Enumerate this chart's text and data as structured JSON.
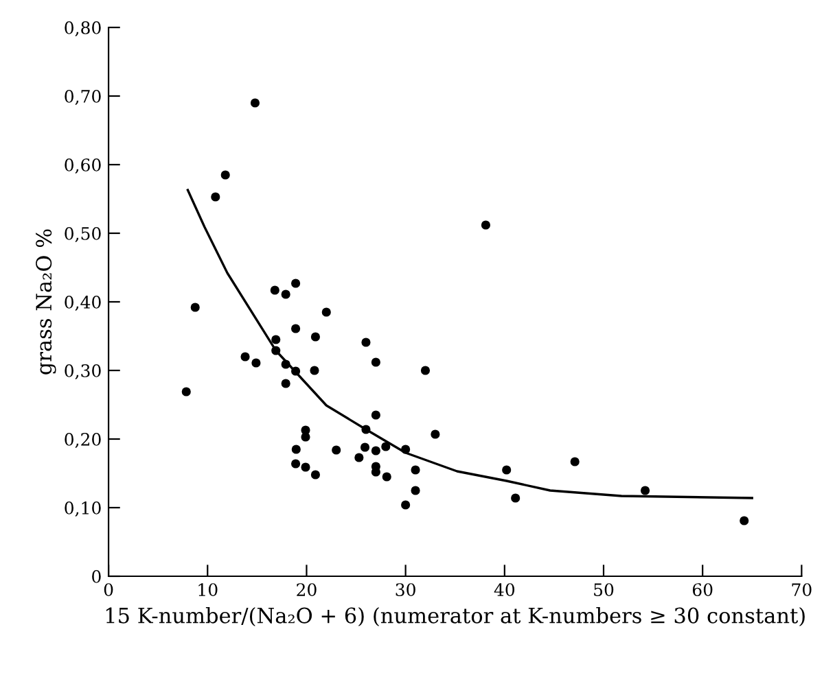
{
  "chart_data": {
    "type": "scatter",
    "ylabel": "grass Na₂O %",
    "xlabel": "15 K-number/(Na₂O + 6) (numerator at K-numbers ≥ 30 constant)",
    "xlim": [
      0,
      70
    ],
    "ylim": [
      0,
      0.8
    ],
    "xticks": [
      0,
      10,
      20,
      30,
      40,
      50,
      60,
      70
    ],
    "yticks": [
      0,
      {
        "value": 0.1,
        "label": "0,10"
      },
      {
        "value": 0.2,
        "label": "0,20"
      },
      {
        "value": 0.3,
        "label": "0,30"
      },
      {
        "value": 0.4,
        "label": "0,40"
      },
      {
        "value": 0.5,
        "label": "0,50"
      },
      {
        "value": 0.6,
        "label": "0,60"
      },
      {
        "value": 0.7,
        "label": "0,70"
      },
      {
        "value": 0.8,
        "label": "0,80"
      }
    ],
    "grid": false,
    "legend": false,
    "marker": "circle",
    "series": [
      {
        "color": "#000000",
        "x": [
          14.8,
          11.8,
          10.8,
          8.75,
          7.85,
          16.8,
          17.9,
          18.9,
          22.0,
          13.8,
          14.9,
          16.9,
          16.9,
          18.9,
          20.9,
          17.9,
          18.9,
          20.8,
          17.9,
          26.0,
          27.0,
          32.0,
          27.0,
          26.0,
          19.9,
          19.9,
          33.0,
          18.95,
          23.0,
          25.9,
          27.0,
          28.0,
          30.0,
          18.9,
          19.9,
          20.9,
          25.3,
          27.0,
          27.0,
          28.1,
          31.0,
          31.0,
          30.0,
          38.1,
          40.2,
          41.1,
          47.1,
          54.2,
          64.2
        ],
        "values": [
          0.69,
          0.585,
          0.553,
          0.392,
          0.269,
          0.417,
          0.411,
          0.427,
          0.385,
          0.32,
          0.311,
          0.345,
          0.329,
          0.361,
          0.349,
          0.309,
          0.299,
          0.3,
          0.281,
          0.341,
          0.312,
          0.3,
          0.235,
          0.214,
          0.213,
          0.203,
          0.207,
          0.185,
          0.184,
          0.188,
          0.183,
          0.189,
          0.185,
          0.164,
          0.159,
          0.148,
          0.173,
          0.16,
          0.152,
          0.145,
          0.155,
          0.125,
          0.104,
          0.512,
          0.155,
          0.114,
          0.167,
          0.125,
          0.081
        ]
      },
      {
        "type": "line",
        "color": "#000000",
        "marker": "none",
        "line_style": "solid",
        "x": [
          8.0,
          9.7,
          12.0,
          16.9,
          22.0,
          26.0,
          30.0,
          35.2,
          40.2,
          44.6,
          51.8,
          65.0
        ],
        "values": [
          0.563,
          0.509,
          0.442,
          0.329,
          0.249,
          0.214,
          0.18,
          0.153,
          0.139,
          0.125,
          0.117,
          0.114
        ]
      }
    ]
  }
}
